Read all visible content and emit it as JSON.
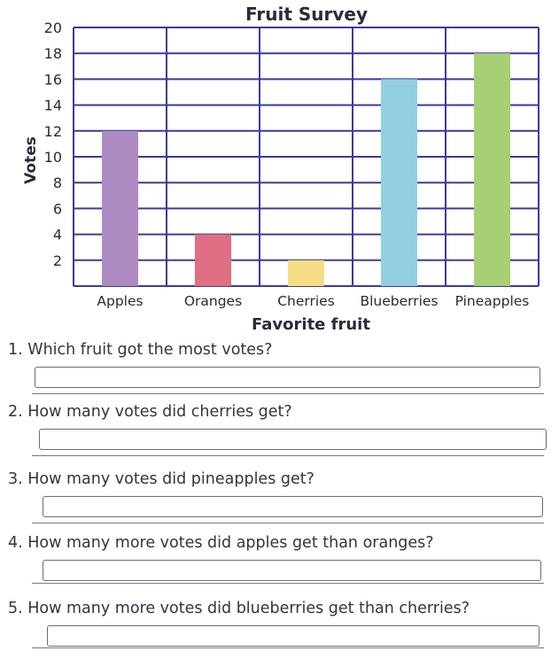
{
  "chart_data": {
    "type": "bar",
    "title": "Fruit Survey",
    "xlabel": "Favorite fruit",
    "ylabel": "Votes",
    "categories": [
      "Apples",
      "Oranges",
      "Cherries",
      "Blueberries",
      "Pineapples"
    ],
    "values": [
      12,
      4,
      2,
      16,
      18
    ],
    "colors": [
      "#ad8bc2",
      "#df6f82",
      "#f6dc84",
      "#92d0e1",
      "#a9cf74"
    ],
    "ylim": [
      0,
      20
    ],
    "yticks": [
      2,
      4,
      6,
      8,
      10,
      12,
      14,
      16,
      18,
      20
    ],
    "grid": true,
    "grid_color": "#3b3a9c"
  },
  "questions": [
    {
      "text": "1. Which fruit got the most votes?",
      "answer": ""
    },
    {
      "text": "2. How many votes did cherries get?",
      "answer": ""
    },
    {
      "text": "3. How many votes did pineapples get?",
      "answer": ""
    },
    {
      "text": "4. How many more votes did apples get than oranges?",
      "answer": ""
    },
    {
      "text": "5. How many more votes did blueberries get than cherries?",
      "answer": ""
    }
  ]
}
